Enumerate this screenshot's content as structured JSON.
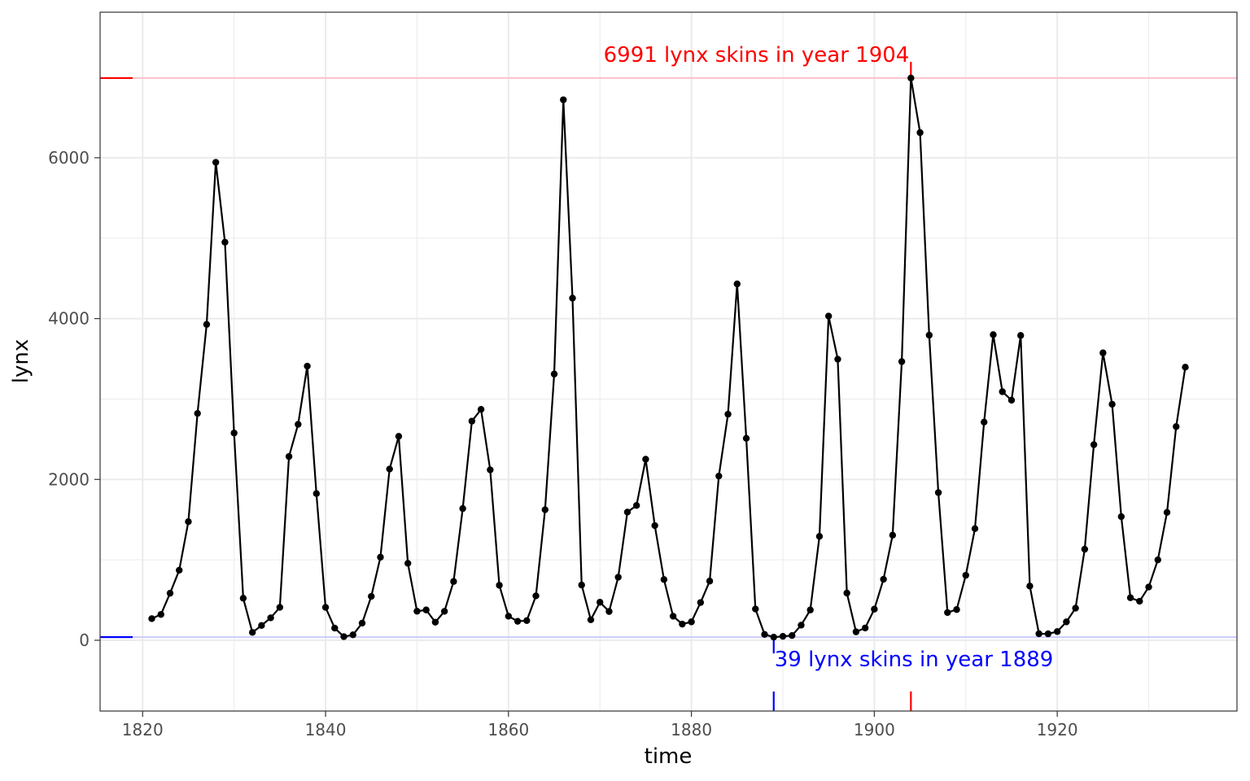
{
  "chart_data": {
    "type": "line",
    "xlabel": "time",
    "ylabel": "lynx",
    "xlim": [
      1815.35,
      1939.65
    ],
    "ylim": [
      -880,
      7810
    ],
    "x_ticks": [
      1820,
      1840,
      1860,
      1880,
      1900,
      1920
    ],
    "y_ticks": [
      0,
      2000,
      4000,
      6000
    ],
    "grid": true,
    "legend": "none",
    "series": [
      {
        "color": "#000000",
        "points": true,
        "x": [
          1821,
          1822,
          1823,
          1824,
          1825,
          1826,
          1827,
          1828,
          1829,
          1830,
          1831,
          1832,
          1833,
          1834,
          1835,
          1836,
          1837,
          1838,
          1839,
          1840,
          1841,
          1842,
          1843,
          1844,
          1845,
          1846,
          1847,
          1848,
          1849,
          1850,
          1851,
          1852,
          1853,
          1854,
          1855,
          1856,
          1857,
          1858,
          1859,
          1860,
          1861,
          1862,
          1863,
          1864,
          1865,
          1866,
          1867,
          1868,
          1869,
          1870,
          1871,
          1872,
          1873,
          1874,
          1875,
          1876,
          1877,
          1878,
          1879,
          1880,
          1881,
          1882,
          1883,
          1884,
          1885,
          1886,
          1887,
          1888,
          1889,
          1890,
          1891,
          1892,
          1893,
          1894,
          1895,
          1896,
          1897,
          1898,
          1899,
          1900,
          1901,
          1902,
          1903,
          1904,
          1905,
          1906,
          1907,
          1908,
          1909,
          1910,
          1911,
          1912,
          1913,
          1914,
          1915,
          1916,
          1917,
          1918,
          1919,
          1920,
          1921,
          1922,
          1923,
          1924,
          1925,
          1926,
          1927,
          1928,
          1929,
          1930,
          1931,
          1932,
          1933,
          1934
        ],
        "values": [
          269,
          321,
          585,
          871,
          1475,
          2821,
          3928,
          5943,
          4950,
          2577,
          523,
          98,
          184,
          279,
          409,
          2285,
          2685,
          3409,
          1824,
          409,
          151,
          45,
          68,
          213,
          546,
          1033,
          2129,
          2536,
          957,
          361,
          377,
          225,
          360,
          731,
          1638,
          2725,
          2871,
          2119,
          684,
          299,
          236,
          245,
          552,
          1623,
          3311,
          6721,
          4254,
          687,
          255,
          473,
          358,
          784,
          1594,
          1676,
          2251,
          1426,
          756,
          299,
          201,
          229,
          469,
          736,
          2042,
          2811,
          4431,
          2511,
          389,
          73,
          39,
          49,
          59,
          188,
          377,
          1292,
          4031,
          3495,
          587,
          105,
          153,
          387,
          758,
          1307,
          3465,
          6991,
          6313,
          3794,
          1836,
          345,
          382,
          808,
          1388,
          2713,
          3800,
          3091,
          2985,
          3790,
          674,
          81,
          80,
          108,
          229,
          399,
          1132,
          2432,
          3574,
          2935,
          1537,
          529,
          485,
          662,
          1000,
          1590,
          2657,
          3396
        ]
      }
    ],
    "reference_lines": [
      {
        "value": 6991,
        "year": 1904,
        "color": "#ff0000",
        "line_color": "#ffc0cb",
        "label": "6991 lynx skins in year 1904"
      },
      {
        "value": 39,
        "year": 1889,
        "color": "#0000ff",
        "line_color": "#c7c7ff",
        "label": "39 lynx skins in year 1889"
      }
    ]
  }
}
